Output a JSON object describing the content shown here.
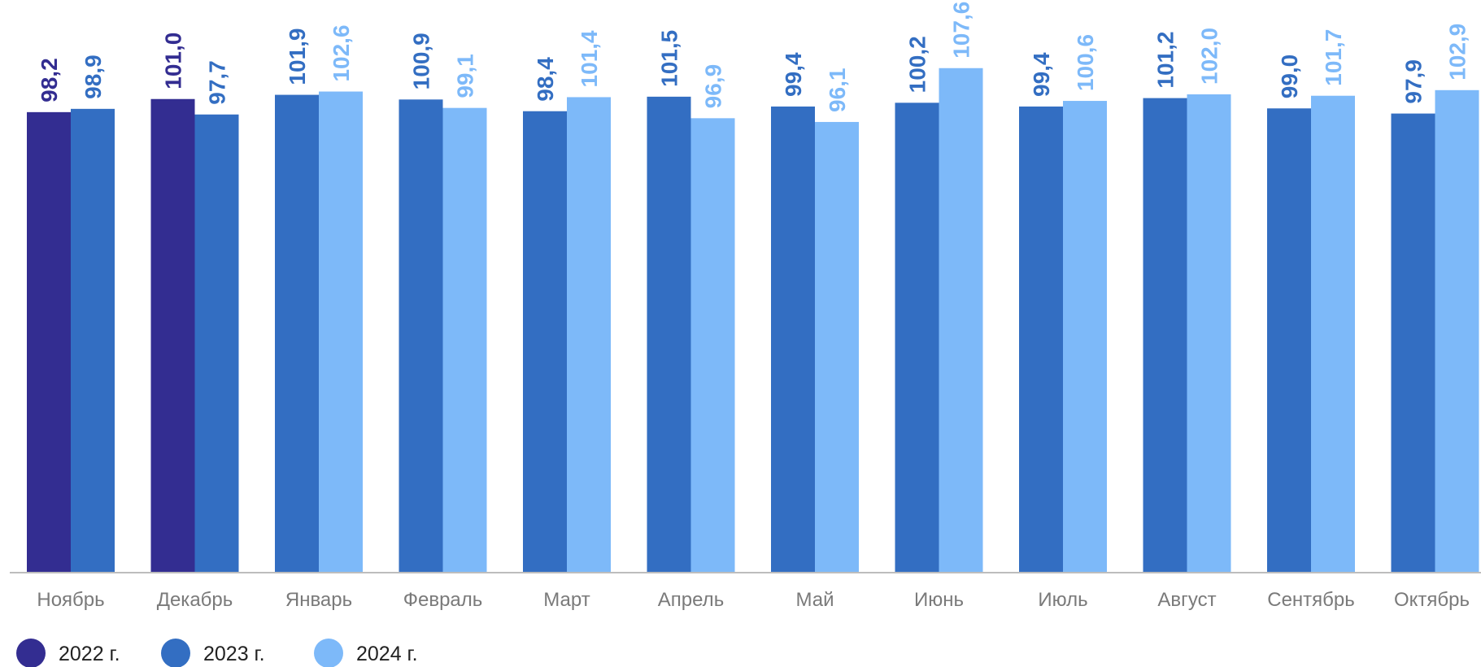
{
  "chart_data": {
    "type": "bar",
    "title": "",
    "xlabel": "",
    "ylabel": "",
    "ylim": [
      0,
      110
    ],
    "grid": false,
    "legend_position": "bottom-left",
    "categories": [
      "Ноябрь",
      "Декабрь",
      "Январь",
      "Февраль",
      "Март",
      "Апрель",
      "Май",
      "Июнь",
      "Июль",
      "Август",
      "Сентябрь",
      "Октябрь"
    ],
    "series": [
      {
        "name": "2022 г.",
        "color": "#332d91",
        "values": [
          98.2,
          101.0,
          null,
          null,
          null,
          null,
          null,
          null,
          null,
          null,
          null,
          null
        ],
        "labels": [
          "98,2",
          "101,0",
          "",
          "",
          "",
          "",
          "",
          "",
          "",
          "",
          "",
          ""
        ]
      },
      {
        "name": "2023 г.",
        "color": "#336ec2",
        "values": [
          98.9,
          97.7,
          101.9,
          100.9,
          98.4,
          101.5,
          99.4,
          100.2,
          99.4,
          101.2,
          99.0,
          97.9
        ],
        "labels": [
          "98,9",
          "97,7",
          "101,9",
          "100,9",
          "98,4",
          "101,5",
          "99,4",
          "100,2",
          "99,4",
          "101,2",
          "99,0",
          "97,9"
        ]
      },
      {
        "name": "2024 г.",
        "color": "#7db9f9",
        "values": [
          null,
          null,
          102.6,
          99.1,
          101.4,
          96.9,
          96.1,
          107.6,
          100.6,
          102.0,
          101.7,
          102.9
        ],
        "labels": [
          "",
          "",
          "102,6",
          "99,1",
          "101,4",
          "96,9",
          "96,1",
          "107,6",
          "100,6",
          "102,0",
          "101,7",
          "102,9"
        ]
      }
    ]
  }
}
